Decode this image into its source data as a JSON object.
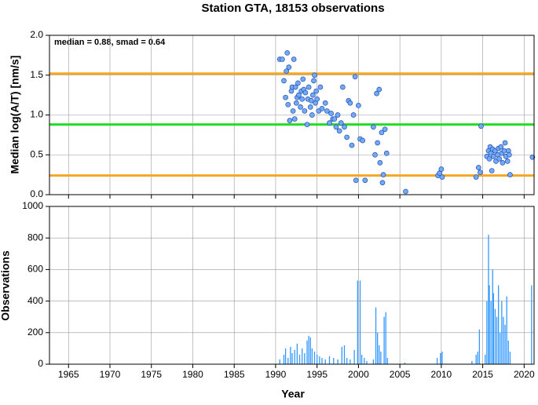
{
  "chart_data": [
    {
      "type": "scatter",
      "title": "Station GTA, 18153 observations",
      "annotation": "median = 0.88, smad = 0.64",
      "y_label": "Median log(A/T) [nm/s]",
      "color": "#74a9f5",
      "xlim": [
        1962.7,
        2021.2
      ],
      "xticks": [
        1965,
        1970,
        1975,
        1980,
        1985,
        1990,
        1995,
        2000,
        2005,
        2010,
        2015,
        2020
      ],
      "ylim": [
        0,
        2
      ],
      "yticks": [
        {
          "value": 0,
          "label": "0.0"
        },
        {
          "value": 0.5,
          "label": "0.5"
        },
        {
          "value": 1,
          "label": "1.0"
        },
        {
          "value": 1.5,
          "label": "1.5"
        },
        {
          "value": 2,
          "label": "2.0"
        }
      ],
      "grid": true,
      "reference_lines": [
        {
          "value": 1.52,
          "color": "#f5a623"
        },
        {
          "value": 0.88,
          "color": "#22dd22"
        },
        {
          "value": 0.24,
          "color": "#f5a623"
        }
      ],
      "x": [
        1990.5,
        1990.8,
        1991.0,
        1991.2,
        1991.3,
        1991.4,
        1991.5,
        1991.6,
        1991.7,
        1991.9,
        1992.0,
        1992.1,
        1992.2,
        1992.3,
        1992.4,
        1992.5,
        1992.6,
        1992.7,
        1992.8,
        1993.0,
        1993.1,
        1993.2,
        1993.3,
        1993.4,
        1993.5,
        1993.6,
        1993.8,
        1993.9,
        1994.0,
        1994.2,
        1994.3,
        1994.4,
        1994.5,
        1994.6,
        1994.7,
        1994.8,
        1994.9,
        1995.0,
        1995.2,
        1995.4,
        1995.6,
        1996.0,
        1996.2,
        1996.5,
        1996.7,
        1996.9,
        1997.1,
        1997.3,
        1997.5,
        1997.7,
        1997.9,
        1998.1,
        1998.3,
        1998.6,
        1998.8,
        1999.0,
        1999.2,
        1999.4,
        1999.6,
        1999.7,
        2000.0,
        2000.2,
        2000.5,
        2000.8,
        2001.8,
        2002.0,
        2002.2,
        2002.3,
        2002.5,
        2002.6,
        2002.8,
        2002.9,
        2003.0,
        2003.2,
        2003.4,
        2005.7,
        2009.6,
        2009.8,
        2010.0,
        2010.1,
        2014.2,
        2014.5,
        2014.7,
        2014.8,
        2015.5,
        2015.7,
        2015.8,
        2015.9,
        2016.0,
        2016.1,
        2016.2,
        2016.3,
        2016.5,
        2016.6,
        2016.8,
        2016.9,
        2017.0,
        2017.2,
        2017.3,
        2017.4,
        2017.6,
        2017.7,
        2017.8,
        2018.0,
        2018.1,
        2018.2,
        2018.3,
        2021.0
      ],
      "values": [
        1.7,
        1.7,
        1.43,
        1.22,
        1.55,
        1.78,
        1.13,
        1.6,
        0.93,
        1.3,
        1.35,
        1.05,
        1.7,
        0.95,
        1.35,
        1.15,
        1.22,
        1.4,
        1.25,
        1.1,
        1.3,
        1.2,
        1.45,
        1.32,
        1.05,
        1.28,
        0.88,
        1.2,
        1.35,
        1.1,
        1.18,
        1.0,
        1.25,
        1.43,
        1.5,
        1.15,
        1.3,
        1.2,
        1.05,
        1.35,
        1.08,
        1.15,
        1.05,
        0.9,
        1.02,
        0.95,
        0.95,
        0.85,
        1.0,
        0.8,
        0.9,
        1.35,
        0.85,
        0.72,
        1.18,
        1.15,
        0.62,
        1.0,
        1.48,
        0.18,
        1.12,
        0.7,
        0.68,
        0.18,
        0.85,
        0.5,
        1.27,
        0.65,
        1.32,
        0.4,
        0.78,
        0.15,
        0.25,
        0.82,
        0.52,
        0.04,
        0.24,
        0.27,
        0.32,
        0.22,
        0.22,
        0.34,
        0.28,
        0.86,
        0.48,
        0.55,
        0.45,
        0.6,
        0.52,
        0.3,
        0.57,
        0.48,
        0.55,
        0.42,
        0.5,
        0.58,
        0.45,
        0.6,
        0.52,
        0.4,
        0.55,
        0.65,
        0.48,
        0.42,
        0.55,
        0.5,
        0.25,
        0.47
      ]
    },
    {
      "type": "bar",
      "y_label": "Observations",
      "x_label": "Year",
      "color": "#3399ff",
      "xlim": [
        1962.7,
        2021.2
      ],
      "xticks": [
        1965,
        1970,
        1975,
        1980,
        1985,
        1990,
        1995,
        2000,
        2005,
        2010,
        2015,
        2020
      ],
      "ylim": [
        0,
        1000
      ],
      "yticks": [
        0,
        200,
        400,
        600,
        800,
        1000
      ],
      "grid": true,
      "x": [
        1990.5,
        1991.0,
        1991.2,
        1991.5,
        1991.8,
        1992.0,
        1992.3,
        1992.6,
        1992.9,
        1993.2,
        1993.5,
        1993.8,
        1994.0,
        1994.2,
        1994.4,
        1994.7,
        1995.0,
        1995.3,
        1995.6,
        1996.0,
        1996.5,
        1997.0,
        1997.5,
        1998.0,
        1998.3,
        1998.6,
        1999.0,
        1999.5,
        1999.9,
        2000.2,
        2000.4,
        2000.7,
        2001.0,
        2001.8,
        2002.1,
        2002.3,
        2002.5,
        2002.7,
        2003.1,
        2003.3,
        2003.5,
        2005.6,
        2009.5,
        2009.9,
        2010.1,
        2013.7,
        2014.2,
        2014.4,
        2014.6,
        2015.3,
        2015.5,
        2015.7,
        2015.8,
        2016.0,
        2016.2,
        2016.3,
        2016.5,
        2016.7,
        2016.9,
        2017.1,
        2017.3,
        2017.5,
        2017.7,
        2017.9,
        2018.1,
        2018.3,
        2020.9
      ],
      "values": [
        30,
        60,
        100,
        40,
        110,
        70,
        90,
        130,
        60,
        100,
        70,
        150,
        180,
        170,
        100,
        80,
        60,
        50,
        40,
        30,
        50,
        40,
        30,
        110,
        120,
        40,
        30,
        90,
        530,
        530,
        60,
        40,
        20,
        30,
        360,
        200,
        120,
        80,
        300,
        330,
        40,
        10,
        40,
        70,
        80,
        20,
        60,
        80,
        220,
        60,
        400,
        820,
        500,
        400,
        600,
        450,
        350,
        300,
        500,
        200,
        400,
        300,
        250,
        430,
        150,
        80,
        500
      ]
    }
  ]
}
